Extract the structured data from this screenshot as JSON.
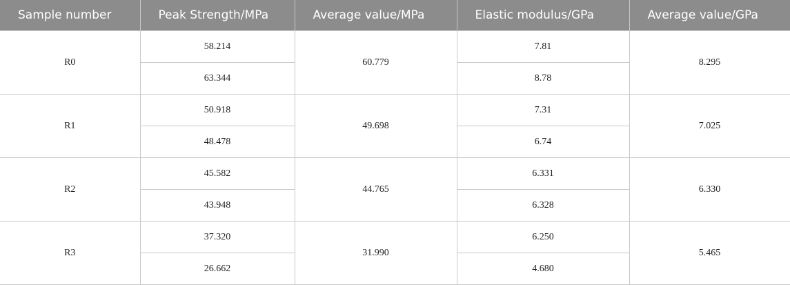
{
  "table": {
    "header": [
      "Sample number",
      "Peak Strength/MPa",
      "Average value/MPa",
      "Elastic modulus/GPa",
      "Average value/GPa"
    ],
    "groups": [
      {
        "sample": "R0",
        "peak": [
          "58.214",
          "63.344"
        ],
        "peak_avg": "60.779",
        "modulus": [
          "7.81",
          "8.78"
        ],
        "modulus_avg": "8.295"
      },
      {
        "sample": "R1",
        "peak": [
          "50.918",
          "48.478"
        ],
        "peak_avg": "49.698",
        "modulus": [
          "7.31",
          "6.74"
        ],
        "modulus_avg": "7.025"
      },
      {
        "sample": "R2",
        "peak": [
          "45.582",
          "43.948"
        ],
        "peak_avg": "44.765",
        "modulus": [
          "6.331",
          "6.328"
        ],
        "modulus_avg": "6.330"
      },
      {
        "sample": "R3",
        "peak": [
          "37.320",
          "26.662"
        ],
        "peak_avg": "31.990",
        "modulus": [
          "6.250",
          "4.680"
        ],
        "modulus_avg": "5.465"
      }
    ]
  }
}
